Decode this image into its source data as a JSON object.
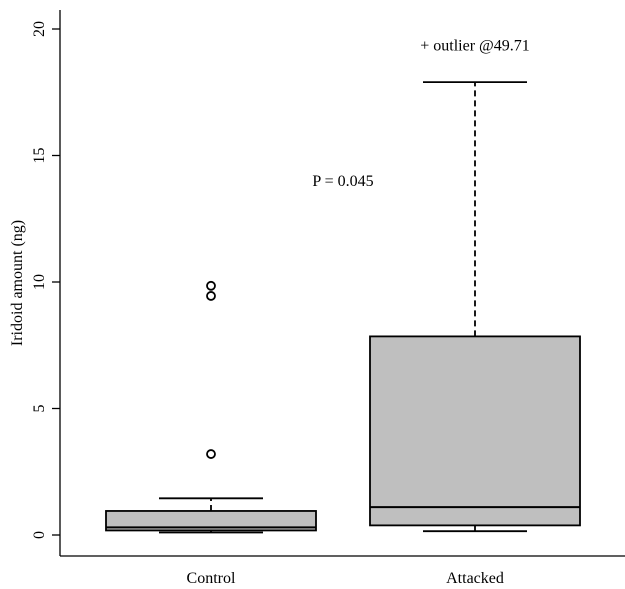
{
  "chart_data": {
    "type": "box",
    "ylabel": "Iridoid amount (ng)",
    "ylim": [
      0,
      20
    ],
    "yticks": [
      0,
      5,
      10,
      15,
      20
    ],
    "categories": [
      "Control",
      "Attacked"
    ],
    "box_color": "#bfbfbf",
    "boxes": [
      {
        "category": "Control",
        "whisker_low": 0.1,
        "q1": 0.18,
        "median": 0.3,
        "q3": 0.95,
        "whisker_high": 1.45,
        "outliers": [
          3.2,
          9.45,
          9.85
        ]
      },
      {
        "category": "Attacked",
        "whisker_low": 0.15,
        "q1": 0.38,
        "median": 1.1,
        "q3": 7.85,
        "whisker_high": 17.9,
        "outliers": []
      }
    ],
    "annotations": [
      {
        "text": "P = 0.045",
        "x": 1.5,
        "y": 13.8
      },
      {
        "text": "+ outlier @49.71",
        "x": 2.0,
        "y": 19.15
      }
    ]
  }
}
